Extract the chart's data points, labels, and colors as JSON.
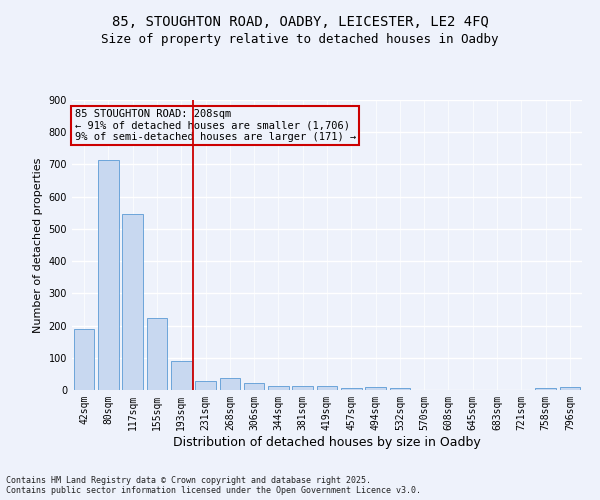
{
  "title_line1": "85, STOUGHTON ROAD, OADBY, LEICESTER, LE2 4FQ",
  "title_line2": "Size of property relative to detached houses in Oadby",
  "xlabel": "Distribution of detached houses by size in Oadby",
  "ylabel": "Number of detached properties",
  "bar_color": "#c8d8f0",
  "bar_edge_color": "#5b9bd5",
  "categories": [
    "42sqm",
    "80sqm",
    "117sqm",
    "155sqm",
    "193sqm",
    "231sqm",
    "268sqm",
    "306sqm",
    "344sqm",
    "381sqm",
    "419sqm",
    "457sqm",
    "494sqm",
    "532sqm",
    "570sqm",
    "608sqm",
    "645sqm",
    "683sqm",
    "721sqm",
    "758sqm",
    "796sqm"
  ],
  "values": [
    190,
    715,
    545,
    225,
    90,
    27,
    37,
    22,
    12,
    12,
    12,
    5,
    10,
    5,
    0,
    0,
    0,
    0,
    0,
    5,
    10
  ],
  "ylim": [
    0,
    900
  ],
  "yticks": [
    0,
    100,
    200,
    300,
    400,
    500,
    600,
    700,
    800,
    900
  ],
  "vline_color": "#cc0000",
  "vline_index": 4.5,
  "annotation_text": "85 STOUGHTON ROAD: 208sqm\n← 91% of detached houses are smaller (1,706)\n9% of semi-detached houses are larger (171) →",
  "annotation_box_color": "#cc0000",
  "background_color": "#eef2fb",
  "grid_color": "#ffffff",
  "footnote": "Contains HM Land Registry data © Crown copyright and database right 2025.\nContains public sector information licensed under the Open Government Licence v3.0.",
  "title_fontsize": 10,
  "subtitle_fontsize": 9,
  "tick_fontsize": 7,
  "ylabel_fontsize": 8,
  "xlabel_fontsize": 9,
  "annotation_fontsize": 7.5,
  "footnote_fontsize": 6
}
